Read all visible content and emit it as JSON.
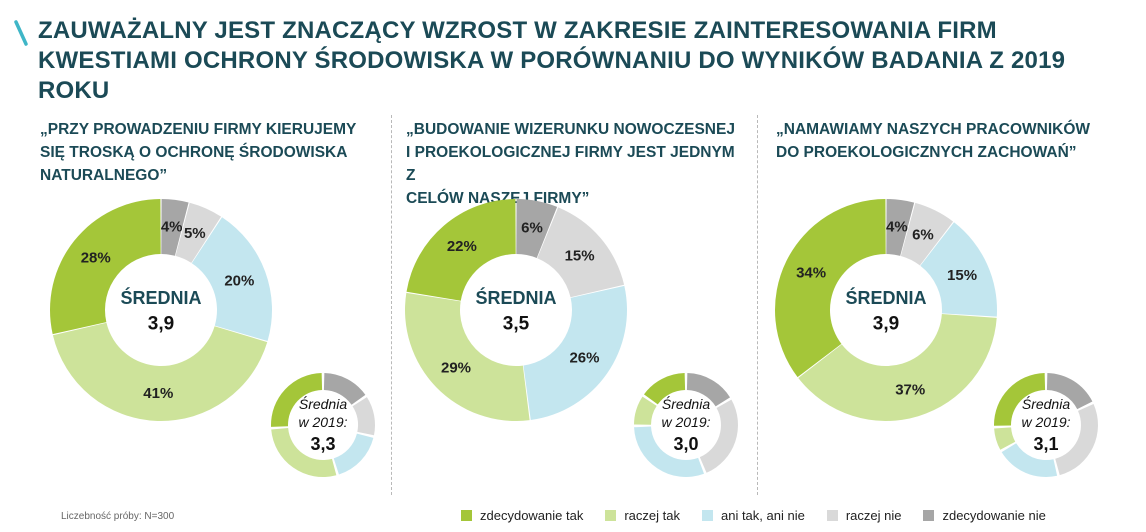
{
  "title": "ZAUWAŻALNY JEST ZNACZĄCY WZROST W ZAKRESIE ZAINTERESOWANIA FIRM KWESTIAMI OCHRONY ŚRODOWISKA W PORÓWNANIU DO WYNIKÓW BADANIA Z 2019 ROKU",
  "footnote": "Liczebność próby: N=300",
  "legend": [
    {
      "label": "zdecydowanie tak",
      "color": "#a4c639"
    },
    {
      "label": "raczej tak",
      "color": "#cde39a"
    },
    {
      "label": "ani tak, ani nie",
      "color": "#c3e6ef"
    },
    {
      "label": "raczej nie",
      "color": "#d9d9d9"
    },
    {
      "label": "zdecydowanie nie",
      "color": "#a6a6a6"
    }
  ],
  "panels": [
    {
      "title": "„PRZY PROWADZENIU FIRMY KIERUJEMY\nSIĘ TROSKĄ O OCHRONĘ ŚRODOWISKA\nNATURALNEGO”"
    },
    {
      "title": "„BUDOWANIE WIZERUNKU NOWOCZESNEJ\nI PROEKOLOGICZNEJ FIRMY JEST JEDNYM Z\nCELÓW NASZEJ FIRMY”"
    },
    {
      "title": "„NAMAWIAMY NASZYCH PRACOWNIKÓW\nDO PROEKOLOGICZNYCH ZACHOWAŃ”"
    }
  ],
  "chart_data": [
    {
      "type": "pie",
      "title": "„PRZY PROWADZENIU FIRMY KIERUJEMY SIĘ TROSKĄ O OCHRONĘ ŚRODOWISKA NATURALNEGO”",
      "categories": [
        "zdecydowanie nie",
        "raczej nie",
        "ani tak, ani nie",
        "raczej tak",
        "zdecydowanie tak"
      ],
      "values": [
        4,
        5,
        20,
        41,
        28
      ],
      "labels": [
        "4%",
        "5%",
        "20%",
        "41%",
        "28%"
      ],
      "center_label": "ŚREDNIA",
      "center_value": "3,9",
      "comparison": {
        "label_line1": "Średnia",
        "label_line2": "w 2019:",
        "value": "3,3",
        "values": [
          12,
          10,
          13,
          22,
          20
        ]
      }
    },
    {
      "type": "pie",
      "title": "„BUDOWANIE WIZERUNKU NOWOCZESNEJ I PROEKOLOGICZNEJ FIRMY JEST JEDNYM Z CELÓW NASZEJ FIRMY”",
      "categories": [
        "zdecydowanie nie",
        "raczej nie",
        "ani tak, ani nie",
        "raczej tak",
        "zdecydowanie tak"
      ],
      "values": [
        6,
        15,
        26,
        29,
        22
      ],
      "labels": [
        "6%",
        "15%",
        "26%",
        "29%",
        "22%"
      ],
      "center_label": "ŚREDNIA",
      "center_value": "3,5",
      "comparison": {
        "label_line1": "Średnia",
        "label_line2": "w 2019:",
        "value": "3,0",
        "values": [
          15,
          25,
          28,
          9,
          14
        ]
      }
    },
    {
      "type": "pie",
      "title": "„NAMAWIAMY NASZYCH PRACOWNIKÓW DO PROEKOLOGICZNYCH ZACHOWAŃ”",
      "categories": [
        "zdecydowanie nie",
        "raczej nie",
        "ani tak, ani nie",
        "raczej tak",
        "zdecydowanie tak"
      ],
      "values": [
        4,
        6,
        15,
        37,
        34
      ],
      "labels": [
        "4%",
        "6%",
        "15%",
        "37%",
        "34%"
      ],
      "center_label": "ŚREDNIA",
      "center_value": "3,9",
      "comparison": {
        "label_line1": "Średnia",
        "label_line2": "w 2019:",
        "value": "3,1",
        "values": [
          14,
          22,
          16,
          6,
          20
        ]
      }
    }
  ]
}
